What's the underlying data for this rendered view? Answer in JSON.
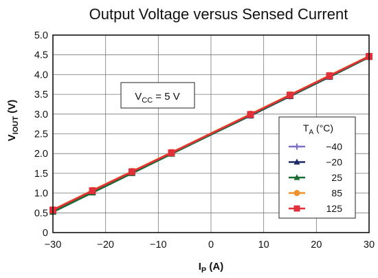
{
  "chart_data": {
    "type": "line",
    "title": "Output Voltage versus Sensed Current",
    "xlabel_main": "I",
    "xlabel_sub": "P",
    "xlabel_unit": "(A)",
    "ylabel_main": "V",
    "ylabel_sub": "IOUT",
    "ylabel_unit": "(V)",
    "xlim": [
      -30,
      30
    ],
    "ylim": [
      0,
      5.0
    ],
    "xticks": [
      "−30",
      "−20",
      "−10",
      "0",
      "10",
      "20",
      "30"
    ],
    "xtick_values": [
      -30,
      -20,
      -10,
      0,
      10,
      20,
      30
    ],
    "yticks": [
      "0",
      "0.5",
      "1.0",
      "1.5",
      "2.0",
      "2.5",
      "3.0",
      "3.5",
      "4.0",
      "4.5",
      "5.0"
    ],
    "ytick_values": [
      0,
      0.5,
      1.0,
      1.5,
      2.0,
      2.5,
      3.0,
      3.5,
      4.0,
      4.5,
      5.0
    ],
    "grid": true,
    "legend_position": "right",
    "legend_title_main": "T",
    "legend_title_sub": "A",
    "legend_title_unit": "(°C)",
    "annotation": {
      "main": "V",
      "sub": "CC",
      "rest": " = 5 V"
    },
    "x": [
      -30,
      -22.5,
      -15,
      -7.5,
      7.5,
      15,
      22.5,
      30
    ],
    "series": [
      {
        "name": "−40",
        "color": "#7b6fc6",
        "marker": "plus",
        "values": [
          0.54,
          1.03,
          1.52,
          2.01,
          2.97,
          3.46,
          3.95,
          4.45
        ]
      },
      {
        "name": "−20",
        "color": "#1f2a6b",
        "marker": "triangle",
        "values": [
          0.54,
          1.03,
          1.52,
          2.0,
          2.96,
          3.45,
          3.94,
          4.44
        ]
      },
      {
        "name": "25",
        "color": "#1d6b34",
        "marker": "triangle",
        "values": [
          0.52,
          1.01,
          1.5,
          1.99,
          2.97,
          3.46,
          3.95,
          4.44
        ]
      },
      {
        "name": "85",
        "color": "#f0922b",
        "marker": "circle",
        "values": [
          0.58,
          1.07,
          1.55,
          2.03,
          3.0,
          3.49,
          3.98,
          4.47
        ]
      },
      {
        "name": "125",
        "color": "#e0303a",
        "marker": "square",
        "values": [
          0.57,
          1.06,
          1.54,
          2.02,
          2.99,
          3.48,
          3.97,
          4.46
        ]
      }
    ]
  }
}
